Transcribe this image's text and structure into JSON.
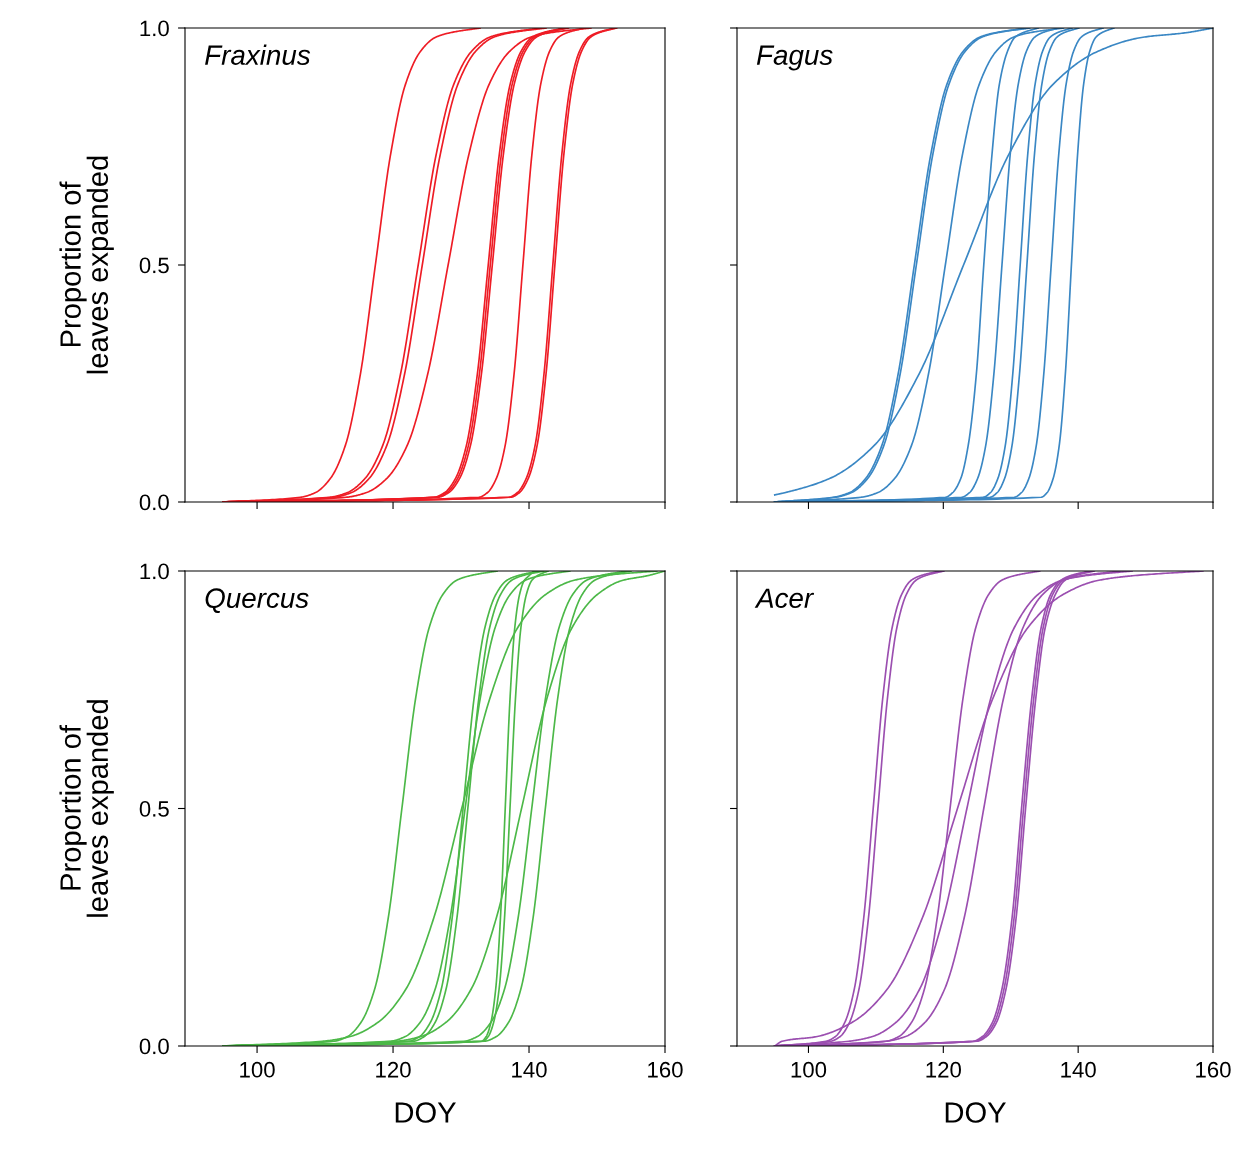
{
  "chart_data": [
    {
      "type": "line",
      "title": "Fraxinus",
      "ylabel": "Proportion of\nleaves expanded",
      "xlim": [
        89.4,
        160
      ],
      "xticks": [
        100,
        120,
        140,
        160
      ],
      "ylim": [
        0,
        1
      ],
      "yticks": [
        {
          "value": 0,
          "label": "0.0"
        },
        {
          "value": 0.5,
          "label": "0.5"
        },
        {
          "value": 1,
          "label": "1.0"
        }
      ],
      "tick_labels": "y",
      "grid": false,
      "legend": false,
      "marker": "none",
      "line_style": "solid",
      "series": [
        {
          "color": "#ee1c25",
          "x": [
            95,
            106.4,
            108.6,
            110.8,
            113.0,
            115.2,
            117.4,
            119.6,
            121.8,
            124.0,
            126.2,
            128.4,
            132.8
          ],
          "values": [
            0,
            0.01,
            0.02,
            0.05,
            0.12,
            0.27,
            0.5,
            0.73,
            0.88,
            0.95,
            0.98,
            0.99,
            1
          ]
        },
        {
          "color": "#ee1c25",
          "x": [
            95,
            110.7,
            113.3,
            115.9,
            118.5,
            121.1,
            123.7,
            126.3,
            128.9,
            131.5,
            134.1,
            136.7,
            141.9
          ],
          "values": [
            0,
            0.01,
            0.02,
            0.05,
            0.12,
            0.27,
            0.5,
            0.73,
            0.88,
            0.95,
            0.98,
            0.99,
            1
          ]
        },
        {
          "color": "#ee1c25",
          "x": [
            95,
            111.3,
            113.9,
            116.5,
            119.1,
            121.7,
            124.3,
            126.9,
            129.5,
            132.1,
            134.7,
            137.3,
            142.5
          ],
          "values": [
            0,
            0.01,
            0.02,
            0.05,
            0.12,
            0.27,
            0.5,
            0.73,
            0.88,
            0.95,
            0.98,
            0.99,
            1
          ]
        },
        {
          "color": "#ee1c25",
          "x": [
            95,
            113.1,
            116.1,
            119.1,
            122.1,
            125.1,
            128.1,
            131.1,
            134.1,
            137.1,
            140.1,
            143.1,
            149.1
          ],
          "values": [
            0,
            0.01,
            0.02,
            0.05,
            0.12,
            0.27,
            0.5,
            0.73,
            0.88,
            0.95,
            0.98,
            0.99,
            1
          ]
        },
        {
          "color": "#ee1c25",
          "x": [
            95,
            126.0,
            127.6,
            129.2,
            130.8,
            132.4,
            134.0,
            135.6,
            137.2,
            138.8,
            140.4,
            142.0,
            145.2
          ],
          "values": [
            0,
            0.01,
            0.02,
            0.05,
            0.12,
            0.27,
            0.5,
            0.73,
            0.88,
            0.95,
            0.98,
            0.99,
            1
          ]
        },
        {
          "color": "#ee1c25",
          "x": [
            95,
            126.3,
            127.9,
            129.5,
            131.1,
            132.7,
            134.3,
            135.9,
            137.5,
            139.1,
            140.7,
            142.3,
            145.5
          ],
          "values": [
            0,
            0.01,
            0.02,
            0.05,
            0.12,
            0.27,
            0.5,
            0.73,
            0.88,
            0.95,
            0.98,
            0.99,
            1
          ]
        },
        {
          "color": "#ee1c25",
          "x": [
            95,
            126.6,
            128.2,
            129.8,
            131.4,
            133.0,
            134.6,
            136.2,
            137.8,
            139.4,
            141.0,
            142.6,
            145.8
          ],
          "values": [
            0,
            0.01,
            0.02,
            0.05,
            0.12,
            0.27,
            0.5,
            0.73,
            0.88,
            0.95,
            0.98,
            0.99,
            1
          ]
        },
        {
          "color": "#ee1c25",
          "x": [
            95,
            132.6,
            133.9,
            135.2,
            136.5,
            137.8,
            139.1,
            140.4,
            141.7,
            143.0,
            144.3,
            145.6,
            148.2
          ],
          "values": [
            0,
            0.01,
            0.02,
            0.05,
            0.12,
            0.27,
            0.5,
            0.73,
            0.88,
            0.95,
            0.98,
            0.99,
            1
          ]
        },
        {
          "color": "#ee1c25",
          "x": [
            95,
            137.0,
            138.3,
            139.6,
            140.9,
            142.2,
            143.5,
            144.8,
            146.1,
            147.4,
            148.7,
            150.0,
            152.6
          ],
          "values": [
            0,
            0.01,
            0.02,
            0.05,
            0.12,
            0.27,
            0.5,
            0.73,
            0.88,
            0.95,
            0.98,
            0.99,
            1
          ]
        },
        {
          "color": "#ee1c25",
          "x": [
            95,
            137.3,
            138.6,
            139.9,
            141.2,
            142.5,
            143.8,
            145.1,
            146.4,
            147.7,
            149.0,
            150.3,
            152.9
          ],
          "values": [
            0,
            0.01,
            0.02,
            0.05,
            0.12,
            0.27,
            0.5,
            0.73,
            0.88,
            0.95,
            0.98,
            0.99,
            1
          ]
        }
      ]
    },
    {
      "type": "line",
      "title": "Fagus",
      "xlim": [
        89.4,
        160
      ],
      "xticks": [
        100,
        120,
        140,
        160
      ],
      "ylim": [
        0,
        1
      ],
      "yticks": [
        {
          "value": 0,
          "label": null
        },
        {
          "value": 0.5,
          "label": null
        },
        {
          "value": 1,
          "label": null
        }
      ],
      "tick_labels": false,
      "grid": false,
      "legend": false,
      "marker": "none",
      "line_style": "solid",
      "series": [
        {
          "color": "#3a87c4",
          "x": [
            95,
            103.7,
            106.1,
            108.5,
            110.9,
            113.3,
            115.7,
            118.1,
            120.5,
            122.9,
            125.3,
            127.7,
            132.5
          ],
          "values": [
            0,
            0.01,
            0.02,
            0.05,
            0.12,
            0.27,
            0.5,
            0.73,
            0.88,
            0.95,
            0.98,
            0.99,
            1
          ]
        },
        {
          "color": "#3a87c4",
          "x": [
            95,
            104.0,
            106.4,
            108.8,
            111.2,
            113.6,
            116.0,
            118.4,
            120.8,
            123.2,
            125.6,
            128.0,
            132.8
          ],
          "values": [
            0,
            0.01,
            0.02,
            0.05,
            0.12,
            0.27,
            0.5,
            0.73,
            0.88,
            0.95,
            0.98,
            0.99,
            1
          ]
        },
        {
          "color": "#3a87c4",
          "x": [
            95,
            107.8,
            110.3,
            112.8,
            115.3,
            117.8,
            120.3,
            122.8,
            125.3,
            127.8,
            130.3,
            132.8,
            137.8
          ],
          "values": [
            0,
            0.01,
            0.02,
            0.05,
            0.12,
            0.27,
            0.5,
            0.73,
            0.88,
            0.95,
            0.98,
            0.99,
            1
          ]
        },
        {
          "color": "#3a87c4",
          "x": [
            95,
            96.6,
            103.2,
            109.8,
            116.4,
            123.0,
            129.6,
            136.2,
            142.8,
            149.4,
            156.0,
            160
          ],
          "values": [
            0.015,
            0.02,
            0.05,
            0.12,
            0.27,
            0.5,
            0.73,
            0.88,
            0.95,
            0.98,
            0.99,
            1
          ]
        },
        {
          "color": "#3a87c4",
          "x": [
            95,
            120.3,
            121.4,
            122.6,
            123.7,
            124.9,
            126.0,
            127.2,
            128.3,
            129.5,
            130.6,
            131.8,
            134.1
          ],
          "values": [
            0,
            0.01,
            0.02,
            0.05,
            0.12,
            0.27,
            0.5,
            0.73,
            0.88,
            0.95,
            0.98,
            0.99,
            1
          ]
        },
        {
          "color": "#3a87c4",
          "x": [
            95,
            122.7,
            123.9,
            125.1,
            126.3,
            127.5,
            128.7,
            129.9,
            131.1,
            132.3,
            133.5,
            134.7,
            137.1
          ],
          "values": [
            0,
            0.01,
            0.02,
            0.05,
            0.12,
            0.27,
            0.5,
            0.73,
            0.88,
            0.95,
            0.98,
            0.99,
            1
          ]
        },
        {
          "color": "#3a87c4",
          "x": [
            95,
            125.9,
            127.0,
            128.1,
            129.2,
            130.3,
            131.4,
            132.5,
            133.6,
            134.7,
            135.8,
            136.9,
            139.1
          ],
          "values": [
            0,
            0.01,
            0.02,
            0.05,
            0.12,
            0.27,
            0.5,
            0.73,
            0.88,
            0.95,
            0.98,
            0.99,
            1
          ]
        },
        {
          "color": "#3a87c4",
          "x": [
            95,
            126.9,
            128.0,
            129.1,
            130.2,
            131.3,
            132.4,
            133.5,
            134.6,
            135.7,
            136.8,
            137.9,
            140.1
          ],
          "values": [
            0,
            0.01,
            0.02,
            0.05,
            0.12,
            0.27,
            0.5,
            0.73,
            0.88,
            0.95,
            0.98,
            0.99,
            1
          ]
        },
        {
          "color": "#3a87c4",
          "x": [
            95,
            130.5,
            131.6,
            132.7,
            133.8,
            134.9,
            136.0,
            137.1,
            138.2,
            139.3,
            140.4,
            141.5,
            143.7
          ],
          "values": [
            0,
            0.01,
            0.02,
            0.05,
            0.12,
            0.27,
            0.5,
            0.73,
            0.88,
            0.95,
            0.98,
            0.99,
            1
          ]
        },
        {
          "color": "#3a87c4",
          "x": [
            95,
            134.5,
            135.4,
            136.3,
            137.2,
            138.1,
            139.0,
            139.9,
            140.8,
            141.7,
            142.6,
            143.5,
            145.3
          ],
          "values": [
            0,
            0.01,
            0.02,
            0.05,
            0.12,
            0.27,
            0.5,
            0.73,
            0.88,
            0.95,
            0.98,
            0.99,
            1
          ]
        }
      ]
    },
    {
      "type": "line",
      "title": "Quercus",
      "xlabel": "DOY",
      "ylabel": "Proportion of\nleaves expanded",
      "xlim": [
        89.4,
        160
      ],
      "xticks": [
        100,
        120,
        140,
        160
      ],
      "ylim": [
        0,
        1
      ],
      "yticks": [
        {
          "value": 0,
          "label": "0.0"
        },
        {
          "value": 0.5,
          "label": "0.5"
        },
        {
          "value": 1,
          "label": "1.0"
        }
      ],
      "grid": false,
      "legend": false,
      "marker": "none",
      "line_style": "solid",
      "series": [
        {
          "color": "#4cb848",
          "x": [
            95,
            111.3,
            113.3,
            115.3,
            117.3,
            119.3,
            121.3,
            123.3,
            125.3,
            127.3,
            129.3,
            131.3,
            135.3
          ],
          "values": [
            0,
            0.01,
            0.02,
            0.05,
            0.12,
            0.27,
            0.5,
            0.73,
            0.88,
            0.95,
            0.98,
            0.99,
            1
          ]
        },
        {
          "color": "#4cb848",
          "x": [
            95,
            109.6,
            113.7,
            117.8,
            121.9,
            126.0,
            130.1,
            134.2,
            138.3,
            142.4,
            146.5,
            150.6,
            158.8
          ],
          "values": [
            0,
            0.01,
            0.02,
            0.05,
            0.12,
            0.27,
            0.5,
            0.73,
            0.88,
            0.95,
            0.98,
            0.99,
            1
          ]
        },
        {
          "color": "#4cb848",
          "x": [
            95,
            119.6,
            121.8,
            124.0,
            126.2,
            128.4,
            130.6,
            132.8,
            135.0,
            137.2,
            139.4,
            141.6,
            146.0
          ],
          "values": [
            0,
            0.01,
            0.02,
            0.05,
            0.12,
            0.27,
            0.5,
            0.73,
            0.88,
            0.95,
            0.98,
            0.99,
            1
          ]
        },
        {
          "color": "#4cb848",
          "x": [
            95,
            122.3,
            123.9,
            125.5,
            127.1,
            128.7,
            130.3,
            131.9,
            133.5,
            135.1,
            136.7,
            138.3,
            141.5
          ],
          "values": [
            0,
            0.01,
            0.02,
            0.05,
            0.12,
            0.27,
            0.5,
            0.73,
            0.88,
            0.95,
            0.98,
            0.99,
            1
          ]
        },
        {
          "color": "#4cb848",
          "x": [
            95,
            123.0,
            124.6,
            126.2,
            127.8,
            129.4,
            131.0,
            132.6,
            134.2,
            135.8,
            137.4,
            139.0,
            142.2
          ],
          "values": [
            0,
            0.01,
            0.02,
            0.05,
            0.12,
            0.27,
            0.5,
            0.73,
            0.88,
            0.95,
            0.98,
            0.99,
            1
          ]
        },
        {
          "color": "#4cb848",
          "x": [
            95,
            133.0,
            133.7,
            134.4,
            135.1,
            135.8,
            136.5,
            137.2,
            137.9,
            138.6,
            139.3,
            140.0,
            140.7
          ],
          "values": [
            0,
            0.01,
            0.02,
            0.05,
            0.12,
            0.27,
            0.5,
            0.73,
            0.88,
            0.95,
            0.98,
            0.99,
            1
          ]
        },
        {
          "color": "#4cb848",
          "x": [
            95,
            133.2,
            134.0,
            134.8,
            135.6,
            136.4,
            137.2,
            138.0,
            138.8,
            139.6,
            140.4,
            141.2,
            142.8
          ],
          "values": [
            0,
            0.01,
            0.02,
            0.05,
            0.12,
            0.27,
            0.5,
            0.73,
            0.88,
            0.95,
            0.98,
            0.99,
            1
          ]
        },
        {
          "color": "#4cb848",
          "x": [
            95,
            120.4,
            124.1,
            127.8,
            131.5,
            135.2,
            138.9,
            142.6,
            146.3,
            150.0,
            153.7,
            157.4,
            160
          ],
          "values": [
            0,
            0.01,
            0.02,
            0.05,
            0.12,
            0.27,
            0.5,
            0.73,
            0.88,
            0.95,
            0.98,
            0.99,
            1
          ]
        },
        {
          "color": "#4cb848",
          "x": [
            95,
            130.4,
            132.4,
            134.4,
            136.4,
            138.4,
            140.4,
            142.4,
            144.4,
            146.4,
            148.4,
            150.4,
            154.4
          ],
          "values": [
            0,
            0.01,
            0.02,
            0.05,
            0.12,
            0.27,
            0.5,
            0.73,
            0.88,
            0.95,
            0.98,
            0.99,
            1
          ]
        },
        {
          "color": "#4cb848",
          "x": [
            95,
            133.4,
            135.2,
            137.0,
            138.8,
            140.6,
            142.4,
            144.2,
            146.0,
            147.8,
            149.6,
            151.4,
            155.0
          ],
          "values": [
            0,
            0.01,
            0.02,
            0.05,
            0.12,
            0.27,
            0.5,
            0.73,
            0.88,
            0.95,
            0.98,
            0.99,
            1
          ]
        }
      ]
    },
    {
      "type": "line",
      "title": "Acer",
      "xlabel": "DOY",
      "xlim": [
        89.4,
        160
      ],
      "xticks": [
        100,
        120,
        140,
        160
      ],
      "ylim": [
        0,
        1
      ],
      "yticks": [
        {
          "value": 0,
          "label": null
        },
        {
          "value": 0.5,
          "label": null
        },
        {
          "value": 1,
          "label": null
        }
      ],
      "tick_labels": "x",
      "grid": false,
      "legend": false,
      "marker": "none",
      "line_style": "solid",
      "series": [
        {
          "color": "#9b4fb0",
          "x": [
            95,
            102.6,
            104.0,
            105.4,
            106.8,
            108.2,
            109.6,
            111.0,
            112.4,
            113.8,
            115.2,
            116.6,
            119.4
          ],
          "values": [
            0,
            0.01,
            0.02,
            0.05,
            0.12,
            0.27,
            0.5,
            0.73,
            0.88,
            0.95,
            0.98,
            0.99,
            1
          ]
        },
        {
          "color": "#9b4fb0",
          "x": [
            95,
            103.3,
            104.7,
            106.1,
            107.5,
            108.9,
            110.3,
            111.7,
            113.1,
            114.5,
            115.9,
            117.3,
            120.1
          ],
          "values": [
            0,
            0.01,
            0.02,
            0.05,
            0.12,
            0.27,
            0.5,
            0.73,
            0.88,
            0.95,
            0.98,
            0.99,
            1
          ]
        },
        {
          "color": "#9b4fb0",
          "x": [
            95,
            111.5,
            113.4,
            115.3,
            117.2,
            119.1,
            121.0,
            122.9,
            124.8,
            126.7,
            128.6,
            130.5,
            134.3
          ],
          "values": [
            0,
            0.01,
            0.02,
            0.05,
            0.12,
            0.27,
            0.5,
            0.73,
            0.88,
            0.95,
            0.98,
            0.99,
            1
          ]
        },
        {
          "color": "#9b4fb0",
          "x": [
            95,
            96.1,
            101.3,
            106.5,
            111.7,
            116.9,
            122.1,
            127.3,
            132.5,
            137.7,
            142.9,
            148.1,
            158.5
          ],
          "values": [
            0,
            0.01,
            0.02,
            0.05,
            0.12,
            0.27,
            0.5,
            0.73,
            0.88,
            0.95,
            0.98,
            0.99,
            1
          ]
        },
        {
          "color": "#9b4fb0",
          "x": [
            95,
            106.0,
            109.5,
            113.0,
            116.5,
            120.0,
            123.5,
            127.0,
            130.5,
            134.0,
            137.5,
            141.0,
            148.0
          ],
          "values": [
            0,
            0.01,
            0.02,
            0.05,
            0.12,
            0.27,
            0.5,
            0.73,
            0.88,
            0.95,
            0.98,
            0.99,
            1
          ]
        },
        {
          "color": "#9b4fb0",
          "x": [
            95,
            111.5,
            114.4,
            117.3,
            120.2,
            123.1,
            126.0,
            128.9,
            131.8,
            134.7,
            137.6,
            140.5,
            146.3
          ],
          "values": [
            0,
            0.01,
            0.02,
            0.05,
            0.12,
            0.27,
            0.5,
            0.73,
            0.88,
            0.95,
            0.98,
            0.99,
            1
          ]
        },
        {
          "color": "#9b4fb0",
          "x": [
            95,
            124.4,
            125.8,
            127.3,
            128.7,
            130.2,
            131.6,
            133.1,
            134.5,
            135.9,
            137.4,
            138.8,
            141.7
          ],
          "values": [
            0,
            0.01,
            0.02,
            0.05,
            0.12,
            0.27,
            0.5,
            0.73,
            0.88,
            0.95,
            0.98,
            0.99,
            1
          ]
        },
        {
          "color": "#9b4fb0",
          "x": [
            95,
            124.7,
            126.1,
            127.6,
            129.0,
            130.5,
            131.9,
            133.4,
            134.8,
            136.2,
            137.7,
            139.1,
            142.0
          ],
          "values": [
            0,
            0.01,
            0.02,
            0.05,
            0.12,
            0.27,
            0.5,
            0.73,
            0.88,
            0.95,
            0.98,
            0.99,
            1
          ]
        },
        {
          "color": "#9b4fb0",
          "x": [
            95,
            125.0,
            126.4,
            127.9,
            129.3,
            130.8,
            132.2,
            133.7,
            135.1,
            136.6,
            138.0,
            139.5,
            142.4
          ],
          "values": [
            0,
            0.01,
            0.02,
            0.05,
            0.12,
            0.27,
            0.5,
            0.73,
            0.88,
            0.95,
            0.98,
            0.99,
            1
          ]
        }
      ]
    }
  ]
}
